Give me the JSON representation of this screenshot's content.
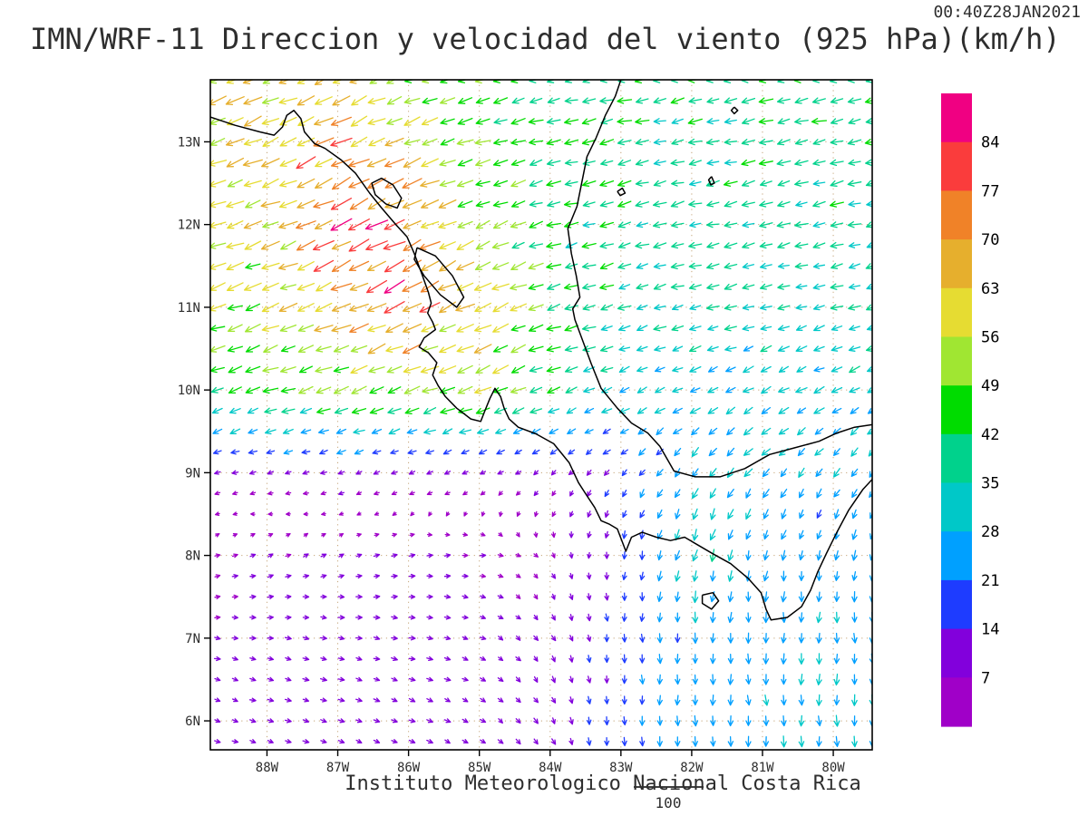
{
  "header": {
    "title": "IMN/WRF-11 Direccion y velocidad del viento (925 hPa)(km/h)",
    "timestamp": "00:40Z28JAN2021"
  },
  "footer": {
    "credit": "Instituto Meteorologico Nacional Costa Rica",
    "ref_value": "100"
  },
  "chart_data": {
    "type": "vector-field-map",
    "title": "IMN/WRF-11 Direccion y velocidad del viento (925 hPa)(km/h)",
    "units": "km/h",
    "level": "925 hPa",
    "timestamp": "00:40Z28JAN2021",
    "extent": {
      "lon_min": -88.8,
      "lon_max": -79.45,
      "lat_min": 5.65,
      "lat_max": 13.75
    },
    "lat_ticks": [
      {
        "value": 13,
        "label": "13N"
      },
      {
        "value": 12,
        "label": "12N"
      },
      {
        "value": 11,
        "label": "11N"
      },
      {
        "value": 10,
        "label": "10N"
      },
      {
        "value": 9,
        "label": "9N"
      },
      {
        "value": 8,
        "label": "8N"
      },
      {
        "value": 7,
        "label": "7N"
      },
      {
        "value": 6,
        "label": "6N"
      }
    ],
    "lon_ticks": [
      {
        "value": -88,
        "label": "88W"
      },
      {
        "value": -87,
        "label": "87W"
      },
      {
        "value": -86,
        "label": "86W"
      },
      {
        "value": -85,
        "label": "85W"
      },
      {
        "value": -84,
        "label": "84W"
      },
      {
        "value": -83,
        "label": "83W"
      },
      {
        "value": -82,
        "label": "82W"
      },
      {
        "value": -81,
        "label": "81W"
      },
      {
        "value": -80,
        "label": "80W"
      }
    ],
    "colorbar": {
      "levels": [
        7,
        14,
        21,
        28,
        35,
        42,
        49,
        56,
        63,
        70,
        77,
        84
      ],
      "colors_low_to_high": [
        "#A000C8",
        "#8200DC",
        "#1E3CFF",
        "#00A0FF",
        "#00C8C8",
        "#00D28C",
        "#00DC00",
        "#A0E632",
        "#E6DC32",
        "#E6AF2D",
        "#F08228",
        "#FA3C3C",
        "#F00082"
      ]
    },
    "graticule_color": "#c4a478",
    "coast_color": "#000000",
    "arrow_spacing_deg": 0.25,
    "wind_grid": {
      "lats": [
        6,
        7,
        8,
        9,
        10,
        11,
        12,
        13,
        14
      ],
      "lons": [
        -89,
        -88,
        -87,
        -86,
        -85,
        -84,
        -83,
        -82,
        -81,
        -80,
        -79
      ],
      "u": [
        [
          8,
          9,
          10,
          10,
          9,
          5,
          2,
          0,
          1,
          1,
          0
        ],
        [
          8,
          9,
          10,
          10,
          8,
          5,
          1,
          -1,
          0,
          0,
          -1
        ],
        [
          6,
          7,
          7,
          8,
          7,
          3,
          -2,
          -8,
          -5,
          -4,
          -5
        ],
        [
          -10,
          -10,
          -11,
          -10,
          -8,
          -7,
          -10,
          -16,
          -18,
          -16,
          -15
        ],
        [
          -38,
          -42,
          -46,
          -48,
          -52,
          -35,
          -28,
          -27,
          -27,
          -28,
          -28
        ],
        [
          -48,
          -52,
          -60,
          -68,
          -55,
          -40,
          -35,
          -33,
          -32,
          -33,
          -33
        ],
        [
          -50,
          -55,
          -72,
          -68,
          -45,
          -40,
          -37,
          -35,
          -35,
          -36,
          -36
        ],
        [
          -52,
          -58,
          -65,
          -52,
          -44,
          -40,
          -38,
          -38,
          -38,
          -39,
          -39
        ],
        [
          -55,
          -56,
          -52,
          -46,
          -42,
          -40,
          -40,
          -40,
          -40,
          -40,
          -40
        ]
      ],
      "v": [
        [
          -3,
          -3,
          -3,
          -4,
          -5,
          -10,
          -18,
          -26,
          -28,
          -28,
          -27
        ],
        [
          -1,
          -1,
          -2,
          -2,
          -3,
          -8,
          -16,
          -24,
          -26,
          -26,
          -26
        ],
        [
          2,
          3,
          3,
          2,
          0,
          -5,
          -14,
          -34,
          -24,
          -23,
          -24
        ],
        [
          -3,
          -3,
          -4,
          -4,
          -4,
          -6,
          -12,
          -22,
          -22,
          -20,
          -20
        ],
        [
          -12,
          -14,
          -15,
          -16,
          -20,
          -13,
          -12,
          -13,
          -14,
          -13,
          -12
        ],
        [
          -16,
          -18,
          -25,
          -36,
          -25,
          -13,
          -10,
          -9,
          -9,
          -9,
          -9
        ],
        [
          -15,
          -20,
          -33,
          -34,
          -18,
          -11,
          -9,
          -8,
          -8,
          -9,
          -9
        ],
        [
          -18,
          -24,
          -33,
          -22,
          -14,
          -10,
          -9,
          -9,
          -9,
          -9,
          -9
        ],
        [
          -20,
          -22,
          -22,
          -14,
          -10,
          -9,
          -9,
          -9,
          -9,
          -9,
          -9
        ]
      ]
    },
    "coastlines": [
      [
        [
          -88.8,
          13.3
        ],
        [
          -88.45,
          13.2
        ],
        [
          -88.1,
          13.12
        ],
        [
          -87.9,
          13.08
        ],
        [
          -87.78,
          13.18
        ],
        [
          -87.72,
          13.32
        ],
        [
          -87.62,
          13.38
        ],
        [
          -87.52,
          13.28
        ],
        [
          -87.47,
          13.12
        ],
        [
          -87.33,
          12.98
        ],
        [
          -87.18,
          12.92
        ],
        [
          -86.95,
          12.78
        ],
        [
          -86.75,
          12.62
        ],
        [
          -86.55,
          12.38
        ],
        [
          -86.38,
          12.2
        ],
        [
          -86.18,
          12.0
        ],
        [
          -86.02,
          11.85
        ],
        [
          -85.92,
          11.65
        ],
        [
          -85.82,
          11.42
        ],
        [
          -85.72,
          11.18
        ],
        [
          -85.68,
          11.05
        ],
        [
          -85.73,
          10.93
        ],
        [
          -85.66,
          10.82
        ],
        [
          -85.62,
          10.73
        ],
        [
          -85.78,
          10.63
        ],
        [
          -85.85,
          10.52
        ],
        [
          -85.72,
          10.45
        ],
        [
          -85.6,
          10.33
        ],
        [
          -85.66,
          10.18
        ],
        [
          -85.58,
          10.05
        ],
        [
          -85.48,
          9.92
        ],
        [
          -85.32,
          9.78
        ],
        [
          -85.12,
          9.65
        ],
        [
          -84.98,
          9.62
        ],
        [
          -84.92,
          9.75
        ],
        [
          -84.85,
          9.9
        ],
        [
          -84.78,
          10.02
        ],
        [
          -84.7,
          9.92
        ],
        [
          -84.65,
          9.78
        ],
        [
          -84.58,
          9.65
        ],
        [
          -84.45,
          9.55
        ],
        [
          -84.2,
          9.47
        ],
        [
          -83.95,
          9.35
        ],
        [
          -83.73,
          9.12
        ],
        [
          -83.6,
          8.88
        ],
        [
          -83.48,
          8.72
        ],
        [
          -83.37,
          8.58
        ],
        [
          -83.28,
          8.42
        ],
        [
          -83.17,
          8.38
        ],
        [
          -83.05,
          8.32
        ],
        [
          -82.93,
          8.05
        ],
        [
          -82.85,
          8.22
        ],
        [
          -82.7,
          8.28
        ],
        [
          -82.5,
          8.22
        ],
        [
          -82.3,
          8.18
        ],
        [
          -82.1,
          8.22
        ],
        [
          -81.9,
          8.12
        ],
        [
          -81.7,
          8.02
        ],
        [
          -81.45,
          7.9
        ],
        [
          -81.2,
          7.72
        ],
        [
          -81.02,
          7.55
        ],
        [
          -80.95,
          7.35
        ],
        [
          -80.88,
          7.22
        ],
        [
          -80.65,
          7.25
        ],
        [
          -80.45,
          7.38
        ],
        [
          -80.32,
          7.58
        ],
        [
          -80.22,
          7.8
        ],
        [
          -80.1,
          8.02
        ],
        [
          -79.95,
          8.28
        ],
        [
          -79.78,
          8.55
        ],
        [
          -79.58,
          8.8
        ],
        [
          -79.45,
          8.92
        ]
      ],
      [
        [
          -79.45,
          9.58
        ],
        [
          -79.7,
          9.55
        ],
        [
          -79.95,
          9.48
        ],
        [
          -80.2,
          9.38
        ],
        [
          -80.55,
          9.3
        ],
        [
          -80.9,
          9.22
        ],
        [
          -81.25,
          9.05
        ],
        [
          -81.6,
          8.95
        ],
        [
          -81.95,
          8.95
        ],
        [
          -82.25,
          9.02
        ],
        [
          -82.45,
          9.32
        ],
        [
          -82.62,
          9.48
        ],
        [
          -82.85,
          9.6
        ],
        [
          -83.05,
          9.78
        ],
        [
          -83.28,
          10.02
        ],
        [
          -83.42,
          10.32
        ],
        [
          -83.55,
          10.62
        ],
        [
          -83.65,
          10.85
        ],
        [
          -83.68,
          10.98
        ],
        [
          -83.58,
          11.12
        ],
        [
          -83.63,
          11.38
        ],
        [
          -83.7,
          11.65
        ],
        [
          -83.75,
          11.95
        ],
        [
          -83.62,
          12.22
        ],
        [
          -83.55,
          12.52
        ],
        [
          -83.48,
          12.82
        ],
        [
          -83.35,
          13.05
        ],
        [
          -83.22,
          13.32
        ],
        [
          -83.08,
          13.55
        ],
        [
          -83.0,
          13.75
        ]
      ],
      [
        [
          -86.52,
          12.5
        ],
        [
          -86.38,
          12.56
        ],
        [
          -86.22,
          12.48
        ],
        [
          -86.1,
          12.32
        ],
        [
          -86.16,
          12.2
        ],
        [
          -86.32,
          12.25
        ],
        [
          -86.47,
          12.36
        ],
        [
          -86.52,
          12.5
        ]
      ],
      [
        [
          -85.88,
          11.72
        ],
        [
          -85.62,
          11.62
        ],
        [
          -85.38,
          11.38
        ],
        [
          -85.22,
          11.12
        ],
        [
          -85.32,
          11.0
        ],
        [
          -85.55,
          11.15
        ],
        [
          -85.78,
          11.38
        ],
        [
          -85.92,
          11.58
        ],
        [
          -85.88,
          11.72
        ]
      ],
      [
        [
          -81.4,
          13.42
        ],
        [
          -81.35,
          13.38
        ],
        [
          -81.4,
          13.34
        ],
        [
          -81.44,
          13.38
        ],
        [
          -81.4,
          13.42
        ]
      ],
      [
        [
          -81.72,
          12.58
        ],
        [
          -81.68,
          12.5
        ],
        [
          -81.73,
          12.48
        ],
        [
          -81.76,
          12.54
        ],
        [
          -81.72,
          12.58
        ]
      ],
      [
        [
          -83.05,
          12.4
        ],
        [
          -82.98,
          12.44
        ],
        [
          -82.94,
          12.38
        ],
        [
          -83.01,
          12.35
        ],
        [
          -83.05,
          12.4
        ]
      ],
      [
        [
          -81.85,
          7.52
        ],
        [
          -81.7,
          7.55
        ],
        [
          -81.62,
          7.45
        ],
        [
          -81.72,
          7.35
        ],
        [
          -81.85,
          7.42
        ],
        [
          -81.85,
          7.52
        ]
      ]
    ]
  }
}
